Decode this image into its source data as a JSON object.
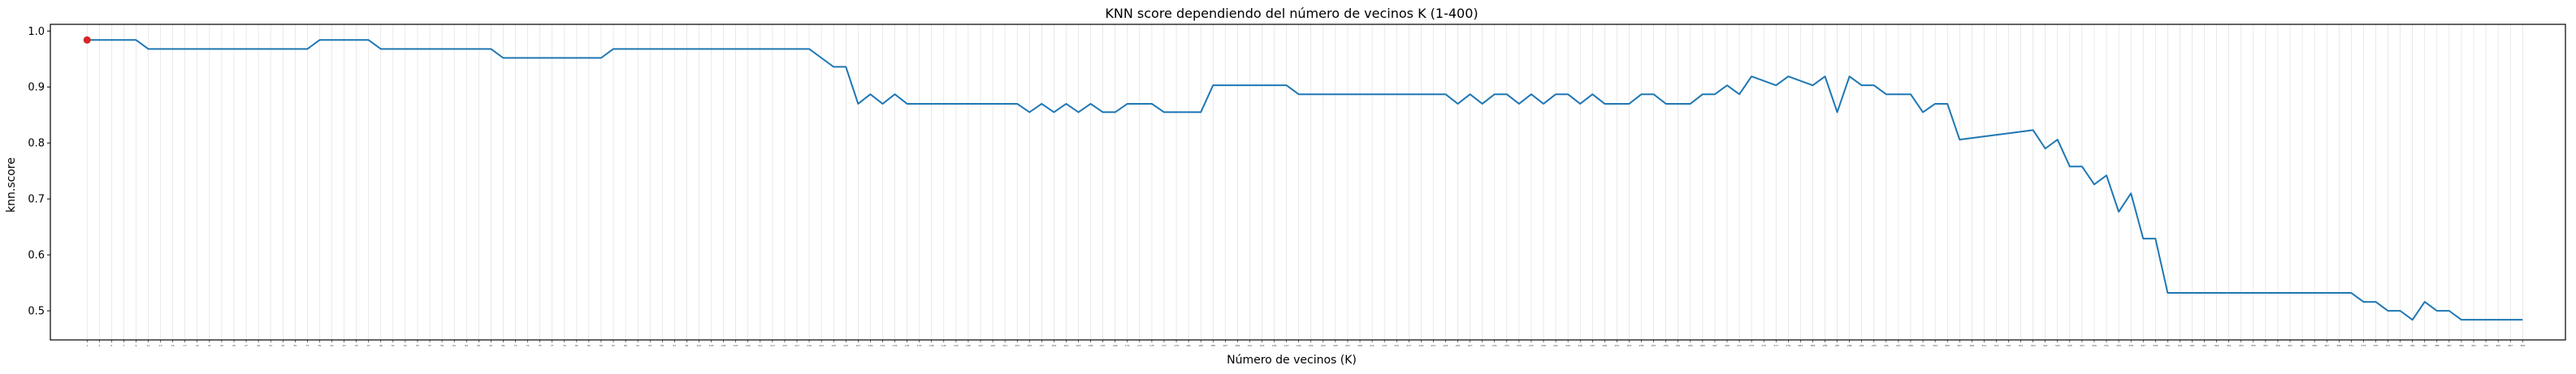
{
  "chart_data": {
    "type": "line",
    "title": "KNN score dependiendo del número de vecinos K (1-400)",
    "xlabel": "Número de vecinos (K)",
    "ylabel": "knn.score",
    "xlim": [
      -5,
      406
    ],
    "ylim": [
      0.448,
      1.012
    ],
    "yticks": [
      0.5,
      0.6,
      0.7,
      0.8,
      0.9,
      1.0
    ],
    "ytick_labels": [
      "0.5",
      "0.6",
      "0.7",
      "0.8",
      "0.9",
      "1.0"
    ],
    "xticks_start": 1,
    "xticks_end": 399,
    "xticks_step": 2,
    "grid": "x-only",
    "legend": "none",
    "line_color": "#1f77b4",
    "marker_color": "#d62728",
    "highlight_point": {
      "x": 1,
      "y": 0.984
    },
    "series": [
      {
        "x": [
          1,
          9,
          11,
          37,
          39,
          47,
          49,
          67,
          69,
          85,
          87,
          119,
          121,
          123,
          125,
          127,
          129,
          131,
          133,
          135,
          137,
          153,
          155,
          157,
          159,
          161,
          163,
          165,
          167,
          169,
          171,
          175,
          177,
          183,
          185,
          197,
          199,
          209,
          211,
          213,
          223,
          225,
          227,
          229,
          231,
          233,
          235,
          237,
          239,
          241,
          243,
          245,
          247,
          249,
          251,
          253,
          255,
          257,
          259,
          263,
          265,
          267,
          269,
          271,
          273,
          277,
          279,
          283,
          285,
          287,
          289,
          291,
          293,
          295,
          297,
          299,
          301,
          303,
          305,
          307,
          319,
          321,
          323,
          325,
          327,
          329,
          331,
          333,
          335,
          337,
          339,
          341,
          343,
          345,
          347,
          349,
          371,
          373,
          375,
          377,
          379,
          381,
          383,
          385,
          387,
          389,
          391,
          399
        ],
        "y": [
          0.984,
          0.984,
          0.968,
          0.968,
          0.984,
          0.984,
          0.968,
          0.968,
          0.952,
          0.952,
          0.968,
          0.968,
          0.952,
          0.936,
          0.936,
          0.87,
          0.887,
          0.87,
          0.887,
          0.87,
          0.87,
          0.87,
          0.855,
          0.87,
          0.855,
          0.87,
          0.855,
          0.87,
          0.855,
          0.855,
          0.87,
          0.87,
          0.855,
          0.855,
          0.903,
          0.903,
          0.887,
          0.887,
          0.887,
          0.887,
          0.887,
          0.87,
          0.887,
          0.87,
          0.887,
          0.887,
          0.87,
          0.887,
          0.87,
          0.887,
          0.887,
          0.87,
          0.887,
          0.87,
          0.87,
          0.87,
          0.887,
          0.887,
          0.87,
          0.87,
          0.887,
          0.887,
          0.903,
          0.887,
          0.919,
          0.903,
          0.919,
          0.903,
          0.919,
          0.855,
          0.919,
          0.903,
          0.903,
          0.887,
          0.887,
          0.887,
          0.855,
          0.87,
          0.87,
          0.806,
          0.823,
          0.79,
          0.806,
          0.758,
          0.758,
          0.726,
          0.742,
          0.677,
          0.71,
          0.629,
          0.629,
          0.532,
          0.532,
          0.532,
          0.532,
          0.532,
          0.532,
          0.516,
          0.516,
          0.5,
          0.5,
          0.484,
          0.516,
          0.5,
          0.5,
          0.484,
          0.484,
          0.484
        ]
      }
    ]
  }
}
